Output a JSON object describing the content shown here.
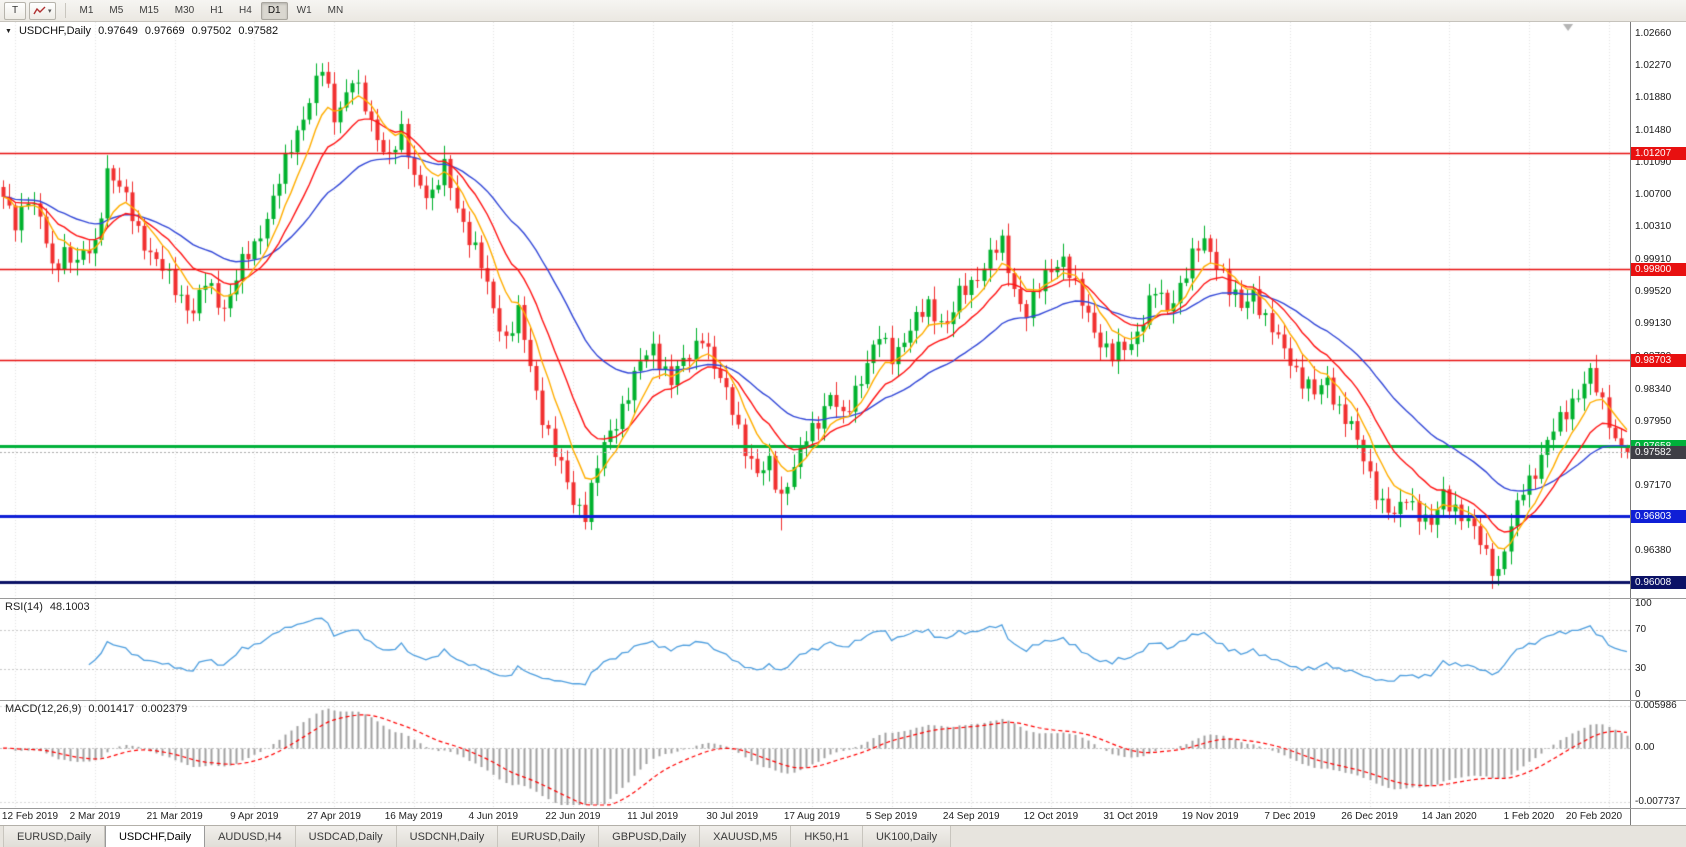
{
  "toolbar": {
    "template_button_label": "T",
    "timeframes": [
      "M1",
      "M5",
      "M15",
      "M30",
      "H1",
      "H4",
      "D1",
      "W1",
      "MN"
    ],
    "active_timeframe": "D1"
  },
  "chart": {
    "symbol_title": "USDCHF,Daily",
    "quote_open": "0.97649",
    "quote_high": "0.97669",
    "quote_low": "0.97502",
    "quote_close": "0.97582"
  },
  "price_axis": {
    "ticks": [
      "1.02660",
      "1.02270",
      "1.01880",
      "1.01480",
      "1.01090",
      "1.00700",
      "1.00310",
      "0.99910",
      "0.99520",
      "0.99130",
      "0.98730",
      "0.98340",
      "0.97950",
      "0.97560",
      "0.97170",
      "0.96780",
      "0.96380",
      "0.95990"
    ]
  },
  "time_axis": {
    "labels": [
      "12 Feb 2019",
      "2 Mar 2019",
      "21 Mar 2019",
      "9 Apr 2019",
      "27 Apr 2019",
      "16 May 2019",
      "4 Jun 2019",
      "22 Jun 2019",
      "11 Jul 2019",
      "30 Jul 2019",
      "17 Aug 2019",
      "5 Sep 2019",
      "24 Sep 2019",
      "12 Oct 2019",
      "31 Oct 2019",
      "19 Nov 2019",
      "7 Dec 2019",
      "26 Dec 2019",
      "14 Jan 2020",
      "1 Feb 2020",
      "20 Feb 2020"
    ]
  },
  "indicators": {
    "rsi": {
      "label": "RSI(14)",
      "value": "48.1003",
      "scale": [
        "100",
        "70",
        "30",
        "0"
      ],
      "levels": [
        70,
        30
      ]
    },
    "macd": {
      "label": "MACD(12,26,9)",
      "value_main": "0.001417",
      "value_signal": "0.002379",
      "scale_top": "0.005986",
      "scale_zero": "0.00",
      "scale_bottom": "-0.007737"
    }
  },
  "tabs": [
    "EURUSD,Daily",
    "USDCHF,Daily",
    "AUDUSD,H4",
    "USDCAD,Daily",
    "USDCNH,Daily",
    "EURUSD,Daily",
    "GBPUSD,Daily",
    "XAUUSD,M5",
    "HK50,H1",
    "UK100,Daily"
  ],
  "active_tab_index": 1,
  "colors": {
    "background": "#ffffff",
    "grid": "#e3e3e3",
    "candle_up": "#00b22d",
    "candle_down": "#f13030",
    "rsi_line": "#4f9fdf",
    "level_dash": "#c8c8c8",
    "macd_hist": "#a0a0a0",
    "macd_signal": "#ff0000",
    "bid_line": "#aaaaaa",
    "shift_marker": "#b4b4b4"
  },
  "chart_data": {
    "type": "candlestick",
    "symbol": "USDCHF",
    "period": "Daily",
    "num_candles": 266,
    "ylim": [
      0.9581,
      1.028
    ],
    "x_label_start_index": 2,
    "x_label_step": 13,
    "last_candle": {
      "open": 0.97649,
      "high": 0.97669,
      "low": 0.97502,
      "close": 0.97582
    },
    "bid": {
      "price": 0.97582,
      "label": "0.97582",
      "color": "#3f3f46"
    },
    "hlines": [
      {
        "price": 1.01207,
        "label": "1.01207",
        "color": "#e81010",
        "width": 1.5
      },
      {
        "price": 0.998,
        "label": "0.99800",
        "color": "#e81010",
        "width": 1.5
      },
      {
        "price": 0.98703,
        "label": "0.98703",
        "color": "#e81010",
        "width": 1.5
      },
      {
        "price": 0.97658,
        "label": "0.97658",
        "color": "#00b13a",
        "width": 3
      },
      {
        "price": 0.96803,
        "label": "0.96803",
        "color": "#0f1fd6",
        "width": 3
      },
      {
        "price": 0.96008,
        "label": "0.96008",
        "color": "#0b1266",
        "width": 3
      }
    ],
    "moving_averages": [
      {
        "period": 7,
        "color": "#ffae00"
      },
      {
        "period": 14,
        "color": "#ff1414"
      },
      {
        "period": 32,
        "color": "#3348d8"
      }
    ],
    "special_wicks": [
      [
        127,
        "low",
        0.9663
      ],
      [
        163,
        "high",
        1.0028
      ]
    ],
    "price_path_waypoints": [
      [
        0,
        1.0062
      ],
      [
        2,
        1.0035
      ],
      [
        4,
        1.0072
      ],
      [
        6,
        1.004
      ],
      [
        8,
        0.9978
      ],
      [
        10,
        1.0005
      ],
      [
        12,
        0.9988
      ],
      [
        15,
        1.0008
      ],
      [
        17,
        1.0102
      ],
      [
        19,
        1.0078
      ],
      [
        22,
        1.0028
      ],
      [
        25,
        0.9988
      ],
      [
        28,
        0.9958
      ],
      [
        31,
        0.9928
      ],
      [
        33,
        0.9962
      ],
      [
        36,
        0.9935
      ],
      [
        39,
        0.9985
      ],
      [
        41,
        1.0008
      ],
      [
        44,
        1.0065
      ],
      [
        47,
        1.0128
      ],
      [
        50,
        1.0188
      ],
      [
        52,
        1.0222
      ],
      [
        54,
        1.0165
      ],
      [
        57,
        1.0212
      ],
      [
        60,
        1.0155
      ],
      [
        63,
        1.0118
      ],
      [
        65,
        1.0142
      ],
      [
        67,
        1.0094
      ],
      [
        70,
        1.0068
      ],
      [
        72,
        1.0102
      ],
      [
        75,
        1.0038
      ],
      [
        78,
        0.9982
      ],
      [
        80,
        0.9934
      ],
      [
        82,
        0.9896
      ],
      [
        84,
        0.9924
      ],
      [
        86,
        0.9862
      ],
      [
        88,
        0.9804
      ],
      [
        90,
        0.9756
      ],
      [
        93,
        0.97
      ],
      [
        95,
        0.9686
      ],
      [
        98,
        0.9764
      ],
      [
        101,
        0.9814
      ],
      [
        104,
        0.9864
      ],
      [
        106,
        0.9886
      ],
      [
        109,
        0.9844
      ],
      [
        112,
        0.9876
      ],
      [
        114,
        0.9904
      ],
      [
        116,
        0.9858
      ],
      [
        119,
        0.9814
      ],
      [
        121,
        0.9764
      ],
      [
        123,
        0.9726
      ],
      [
        125,
        0.9746
      ],
      [
        127,
        0.9706
      ],
      [
        129,
        0.9736
      ],
      [
        131,
        0.9776
      ],
      [
        133,
        0.98
      ],
      [
        135,
        0.9826
      ],
      [
        137,
        0.9796
      ],
      [
        139,
        0.9836
      ],
      [
        141,
        0.9866
      ],
      [
        143,
        0.9896
      ],
      [
        145,
        0.9876
      ],
      [
        148,
        0.9906
      ],
      [
        151,
        0.9936
      ],
      [
        154,
        0.9912
      ],
      [
        156,
        0.9946
      ],
      [
        158,
        0.9964
      ],
      [
        161,
        0.9996
      ],
      [
        163,
        1.0008
      ],
      [
        165,
        0.9958
      ],
      [
        167,
        0.9926
      ],
      [
        169,
        0.9956
      ],
      [
        171,
        0.9984
      ],
      [
        173,
        0.9994
      ],
      [
        175,
        0.9954
      ],
      [
        177,
        0.9924
      ],
      [
        179,
        0.9894
      ],
      [
        181,
        0.9872
      ],
      [
        184,
        0.9892
      ],
      [
        186,
        0.9922
      ],
      [
        188,
        0.9952
      ],
      [
        190,
        0.9932
      ],
      [
        192,
        0.9962
      ],
      [
        194,
        0.9992
      ],
      [
        196,
        1.0014
      ],
      [
        198,
        0.9992
      ],
      [
        200,
        0.9954
      ],
      [
        202,
        0.9932
      ],
      [
        204,
        0.9956
      ],
      [
        206,
        0.9918
      ],
      [
        208,
        0.9892
      ],
      [
        210,
        0.9872
      ],
      [
        212,
        0.9846
      ],
      [
        214,
        0.9826
      ],
      [
        216,
        0.9846
      ],
      [
        218,
        0.9812
      ],
      [
        220,
        0.9786
      ],
      [
        223,
        0.9732
      ],
      [
        225,
        0.9696
      ],
      [
        227,
        0.9676
      ],
      [
        229,
        0.9706
      ],
      [
        231,
        0.9686
      ],
      [
        233,
        0.9666
      ],
      [
        235,
        0.9706
      ],
      [
        237,
        0.9692
      ],
      [
        239,
        0.9672
      ],
      [
        241,
        0.9648
      ],
      [
        243,
        0.9622
      ],
      [
        244,
        0.9614
      ],
      [
        246,
        0.9664
      ],
      [
        248,
        0.9714
      ],
      [
        250,
        0.9738
      ],
      [
        252,
        0.9768
      ],
      [
        254,
        0.9796
      ],
      [
        256,
        0.9822
      ],
      [
        258,
        0.984
      ],
      [
        259,
        0.985
      ],
      [
        261,
        0.9816
      ],
      [
        262,
        0.98
      ],
      [
        263,
        0.9776
      ],
      [
        265,
        0.9758
      ]
    ]
  }
}
